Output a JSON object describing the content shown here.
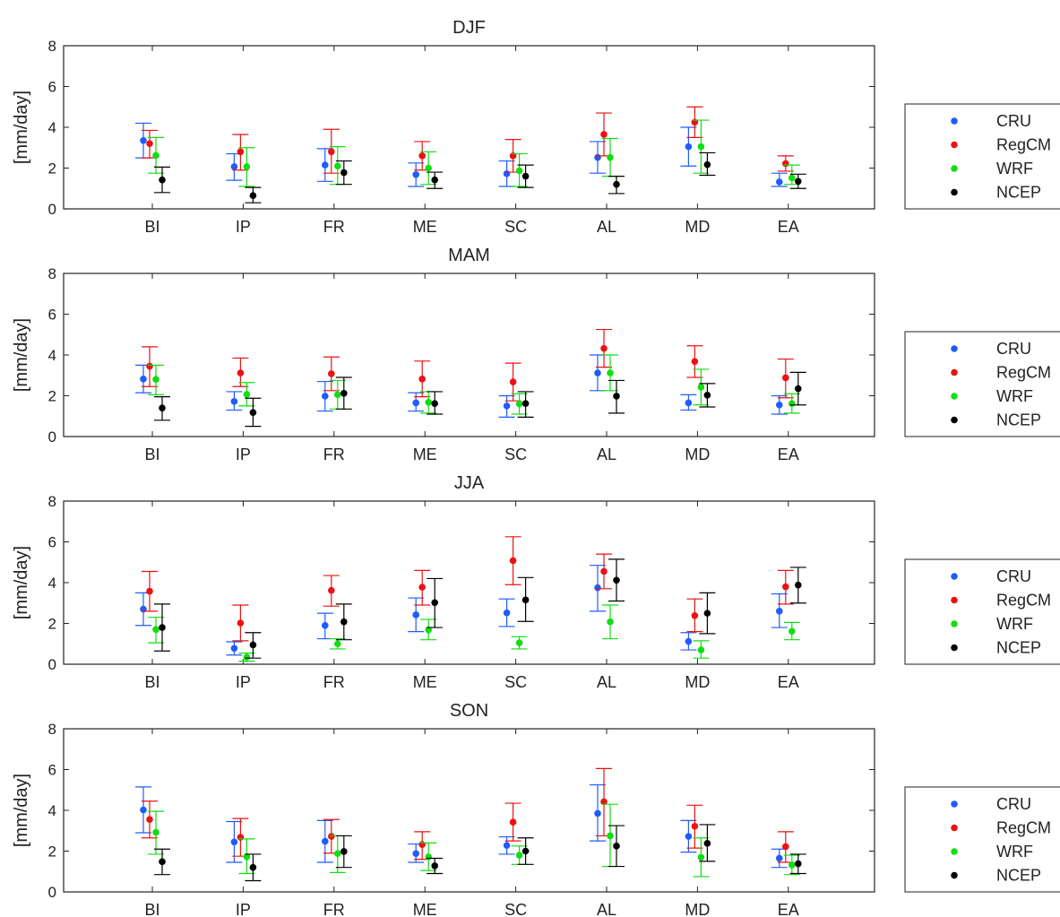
{
  "colors": {
    "CRU": "#1f5cff",
    "RegCM": "#ee1111",
    "WRF": "#11dd11",
    "NCEP": "#000000"
  },
  "chart_data": [
    {
      "type": "scatter",
      "title": "DJF",
      "ylabel": "[mm/day]",
      "ylim": [
        0,
        8
      ],
      "yticks": [
        0,
        2,
        4,
        6,
        8
      ],
      "categories": [
        "BI",
        "IP",
        "FR",
        "ME",
        "SC",
        "AL",
        "MD",
        "EA"
      ],
      "legend": "right",
      "series": [
        {
          "name": "CRU",
          "values": [
            3.35,
            2.07,
            2.15,
            1.68,
            1.72,
            2.52,
            3.05,
            1.32
          ],
          "err_low": [
            2.5,
            1.4,
            1.35,
            1.1,
            1.1,
            1.75,
            2.1,
            1.1
          ],
          "err_high": [
            4.2,
            2.7,
            2.95,
            2.25,
            2.35,
            3.3,
            4.0,
            1.75
          ]
        },
        {
          "name": "RegCM",
          "values": [
            3.2,
            2.8,
            2.8,
            2.6,
            2.6,
            3.65,
            4.25,
            2.22
          ],
          "err_low": [
            2.5,
            1.9,
            1.75,
            1.9,
            1.8,
            2.6,
            3.5,
            1.85
          ],
          "err_high": [
            3.85,
            3.65,
            3.9,
            3.3,
            3.4,
            4.7,
            5.0,
            2.6
          ]
        },
        {
          "name": "WRF",
          "values": [
            2.62,
            2.07,
            2.1,
            2.0,
            1.87,
            2.52,
            3.05,
            1.52
          ],
          "err_low": [
            1.75,
            1.1,
            1.2,
            1.2,
            1.1,
            1.6,
            1.75,
            1.2
          ],
          "err_high": [
            3.5,
            3.0,
            3.05,
            2.8,
            2.7,
            3.45,
            4.35,
            2.15
          ]
        },
        {
          "name": "NCEP",
          "values": [
            1.42,
            0.65,
            1.78,
            1.42,
            1.6,
            1.2,
            2.17,
            1.35
          ],
          "err_low": [
            0.8,
            0.3,
            1.2,
            1.0,
            1.05,
            0.75,
            1.65,
            1.0
          ],
          "err_high": [
            2.05,
            1.05,
            2.35,
            1.8,
            2.15,
            1.6,
            2.75,
            1.7
          ]
        }
      ]
    },
    {
      "type": "scatter",
      "title": "MAM",
      "ylabel": "[mm/day]",
      "ylim": [
        0,
        8
      ],
      "yticks": [
        0,
        2,
        4,
        6,
        8
      ],
      "categories": [
        "BI",
        "IP",
        "FR",
        "ME",
        "SC",
        "AL",
        "MD",
        "EA"
      ],
      "legend": "right",
      "series": [
        {
          "name": "CRU",
          "values": [
            2.82,
            1.72,
            1.98,
            1.65,
            1.5,
            3.12,
            1.65,
            1.55
          ],
          "err_low": [
            2.15,
            1.3,
            1.25,
            1.25,
            0.95,
            2.25,
            1.3,
            1.1
          ],
          "err_high": [
            3.5,
            2.2,
            2.7,
            2.15,
            2.0,
            4.0,
            2.05,
            2.0
          ]
        },
        {
          "name": "RegCM",
          "values": [
            3.45,
            3.12,
            3.08,
            2.82,
            2.68,
            4.32,
            3.68,
            2.88
          ],
          "err_low": [
            2.45,
            2.45,
            2.25,
            1.95,
            1.75,
            3.4,
            2.9,
            1.9
          ],
          "err_high": [
            4.4,
            3.85,
            3.9,
            3.7,
            3.6,
            5.25,
            4.45,
            3.8
          ]
        },
        {
          "name": "WRF",
          "values": [
            2.8,
            2.07,
            2.05,
            1.68,
            1.6,
            3.12,
            2.42,
            1.62
          ],
          "err_low": [
            2.05,
            1.5,
            1.35,
            1.15,
            1.1,
            2.25,
            1.55,
            1.15
          ],
          "err_high": [
            3.5,
            2.65,
            2.75,
            2.2,
            2.1,
            4.0,
            3.3,
            2.1
          ]
        },
        {
          "name": "NCEP",
          "values": [
            1.4,
            1.18,
            2.12,
            1.62,
            1.62,
            1.98,
            2.03,
            2.35
          ],
          "err_low": [
            0.8,
            0.5,
            1.35,
            1.1,
            0.95,
            1.15,
            1.45,
            1.55
          ],
          "err_high": [
            1.95,
            1.88,
            2.9,
            2.2,
            2.2,
            2.75,
            2.6,
            3.15
          ]
        }
      ]
    },
    {
      "type": "scatter",
      "title": "JJA",
      "ylabel": "[mm/day]",
      "ylim": [
        0,
        8
      ],
      "yticks": [
        0,
        2,
        4,
        6,
        8
      ],
      "categories": [
        "BI",
        "IP",
        "FR",
        "ME",
        "SC",
        "AL",
        "MD",
        "EA"
      ],
      "legend": "right",
      "series": [
        {
          "name": "CRU",
          "values": [
            2.7,
            0.78,
            1.9,
            2.42,
            2.52,
            3.75,
            1.12,
            2.6
          ],
          "err_low": [
            1.9,
            0.45,
            1.25,
            1.6,
            1.85,
            2.6,
            0.7,
            1.8
          ],
          "err_high": [
            3.5,
            1.1,
            2.5,
            3.25,
            3.2,
            4.85,
            1.55,
            3.45
          ]
        },
        {
          "name": "RegCM",
          "values": [
            3.58,
            2.02,
            3.62,
            3.78,
            5.08,
            4.55,
            2.38,
            3.8
          ],
          "err_low": [
            2.6,
            1.15,
            2.85,
            2.9,
            3.9,
            3.7,
            1.6,
            2.95
          ],
          "err_high": [
            4.55,
            2.9,
            4.35,
            4.6,
            6.25,
            5.4,
            3.2,
            4.6
          ]
        },
        {
          "name": "WRF",
          "values": [
            1.7,
            0.35,
            1.0,
            1.68,
            1.05,
            2.08,
            0.7,
            1.62
          ],
          "err_low": [
            1.05,
            0.15,
            0.75,
            1.2,
            0.75,
            1.25,
            0.3,
            1.2
          ],
          "err_high": [
            2.3,
            0.55,
            1.25,
            2.2,
            1.35,
            2.9,
            1.15,
            2.05
          ]
        },
        {
          "name": "NCEP",
          "values": [
            1.8,
            0.95,
            2.08,
            3.02,
            3.15,
            4.12,
            2.5,
            3.88
          ],
          "err_low": [
            0.65,
            0.3,
            1.2,
            1.8,
            2.1,
            3.1,
            1.5,
            3.0
          ],
          "err_high": [
            2.95,
            1.55,
            2.95,
            4.2,
            4.25,
            5.15,
            3.5,
            4.75
          ]
        }
      ]
    },
    {
      "type": "scatter",
      "title": "SON",
      "ylabel": "[mm/day]",
      "ylim": [
        0,
        8
      ],
      "yticks": [
        0,
        2,
        4,
        6,
        8
      ],
      "categories": [
        "BI",
        "IP",
        "FR",
        "ME",
        "SC",
        "AL",
        "MD",
        "EA"
      ],
      "legend": "right",
      "series": [
        {
          "name": "CRU",
          "values": [
            4.02,
            2.45,
            2.48,
            1.88,
            2.28,
            3.85,
            2.72,
            1.65
          ],
          "err_low": [
            2.9,
            1.45,
            1.45,
            1.45,
            1.85,
            2.5,
            1.95,
            1.2
          ],
          "err_high": [
            5.15,
            3.45,
            3.5,
            2.35,
            2.7,
            5.25,
            3.5,
            2.1
          ]
        },
        {
          "name": "RegCM",
          "values": [
            3.55,
            2.68,
            2.72,
            2.32,
            3.42,
            4.42,
            3.22,
            2.22
          ],
          "err_low": [
            2.65,
            1.75,
            1.9,
            1.6,
            2.5,
            2.75,
            2.15,
            1.45
          ],
          "err_high": [
            4.45,
            3.6,
            3.55,
            2.95,
            4.35,
            6.05,
            4.25,
            2.95
          ]
        },
        {
          "name": "WRF",
          "values": [
            2.92,
            1.72,
            1.88,
            1.72,
            1.8,
            2.75,
            1.7,
            1.32
          ],
          "err_low": [
            1.85,
            0.9,
            0.95,
            1.05,
            1.35,
            1.25,
            0.75,
            0.85
          ],
          "err_high": [
            3.95,
            2.6,
            2.75,
            2.4,
            2.25,
            4.3,
            2.65,
            1.8
          ]
        },
        {
          "name": "NCEP",
          "values": [
            1.48,
            1.2,
            1.98,
            1.28,
            2.0,
            2.25,
            2.38,
            1.38
          ],
          "err_low": [
            0.85,
            0.55,
            1.2,
            0.9,
            1.35,
            1.25,
            1.5,
            0.9
          ],
          "err_high": [
            2.1,
            1.85,
            2.75,
            1.65,
            2.65,
            3.25,
            3.3,
            1.85
          ]
        }
      ]
    }
  ]
}
